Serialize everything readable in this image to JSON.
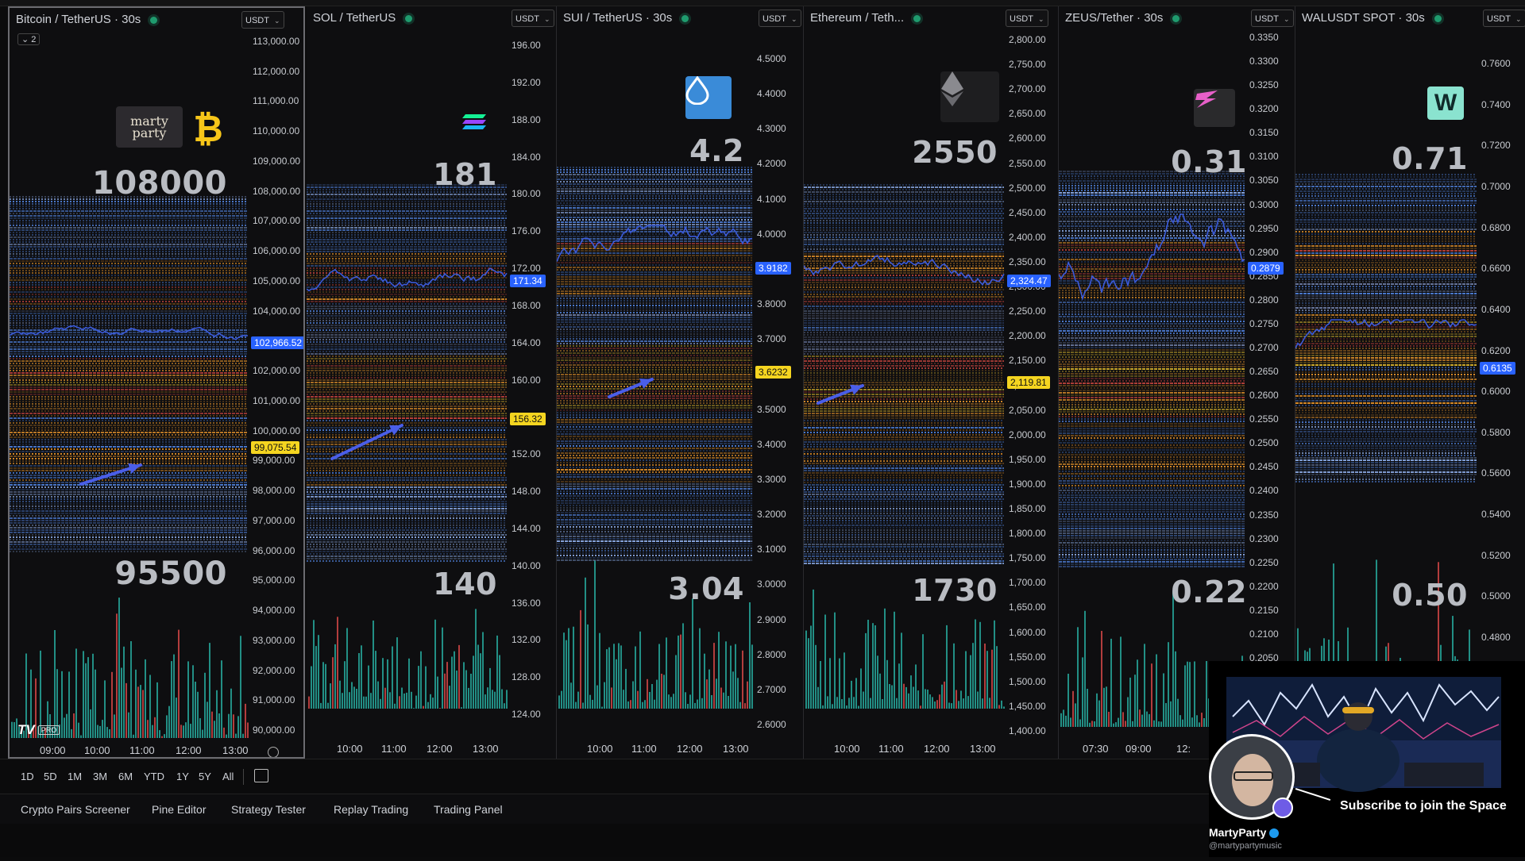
{
  "colors": {
    "line": "#3b5bdb",
    "vol_up": "#26a69a",
    "vol_down": "#d04545",
    "heat_blue": "#4e7fd8",
    "heat_orange": "#e0902a",
    "heat_red": "#d84a42",
    "heat_yellow": "#e9c02f",
    "tag_yellow": "#f5d520",
    "tag_blue": "#2962ff"
  },
  "panels": [
    {
      "id": "btc",
      "title": "Bitcoin / TetherUS · 30s",
      "currency": "USDT",
      "symbol_count": "2",
      "logo_text": "₿",
      "brand_text": "marty party",
      "top_label": "108000",
      "bottom_label": "95500",
      "axis": [
        "113,000.00",
        "112,000.00",
        "111,000.00",
        "110,000.00",
        "109,000.00",
        "108,000.00",
        "107,000.00",
        "106,000.00",
        "105,000.00",
        "104,000.00",
        "103,000.00",
        "102,000.00",
        "101,000.00",
        "100,000.00",
        "99,000.00",
        "98,000.00",
        "97,000.00",
        "96,000.00",
        "95,000.00",
        "94,000.00",
        "93,000.00",
        "92,000.00",
        "91,000.00",
        "90,000.00"
      ],
      "tags": [
        {
          "text": "102,966.52",
          "kind": "blue"
        },
        {
          "text": "99,075.54",
          "kind": "yellow"
        }
      ],
      "times": [
        "09:00",
        "10:00",
        "11:00",
        "12:00",
        "13:00"
      ]
    },
    {
      "id": "sol",
      "title": "SOL / TetherUS",
      "currency": "USDT",
      "top_label": "181",
      "bottom_label": "140",
      "axis": [
        "196.00",
        "192.00",
        "188.00",
        "184.00",
        "180.00",
        "176.00",
        "172.00",
        "168.00",
        "164.00",
        "160.00",
        "156.00",
        "152.00",
        "148.00",
        "144.00",
        "140.00",
        "136.00",
        "132.00",
        "128.00",
        "124.00"
      ],
      "tags": [
        {
          "text": "171.34",
          "kind": "blue"
        },
        {
          "text": "156.32",
          "kind": "yellow"
        }
      ],
      "times": [
        "10:00",
        "11:00",
        "12:00",
        "13:00"
      ]
    },
    {
      "id": "sui",
      "title": "SUI / TetherUS · 30s",
      "currency": "USDT",
      "top_label": "4.2",
      "bottom_label": "3.04",
      "axis": [
        "4.5000",
        "4.4000",
        "4.3000",
        "4.2000",
        "4.1000",
        "4.0000",
        "3.9000",
        "3.8000",
        "3.7000",
        "3.6000",
        "3.5000",
        "3.4000",
        "3.3000",
        "3.2000",
        "3.1000",
        "3.0000",
        "2.9000",
        "2.8000",
        "2.7000",
        "2.6000"
      ],
      "tags": [
        {
          "text": "3.9182",
          "kind": "blue"
        },
        {
          "text": "3.6232",
          "kind": "yellow"
        }
      ],
      "times": [
        "10:00",
        "11:00",
        "12:00",
        "13:00"
      ]
    },
    {
      "id": "eth",
      "title": "Ethereum / Teth...",
      "currency": "USDT",
      "top_label": "2550",
      "bottom_label": "1730",
      "axis": [
        "2,800.00",
        "2,750.00",
        "2,700.00",
        "2,650.00",
        "2,600.00",
        "2,550.00",
        "2,500.00",
        "2,450.00",
        "2,400.00",
        "2,350.00",
        "2,300.00",
        "2,250.00",
        "2,200.00",
        "2,150.00",
        "2,100.00",
        "2,050.00",
        "2,000.00",
        "1,950.00",
        "1,900.00",
        "1,850.00",
        "1,800.00",
        "1,750.00",
        "1,700.00",
        "1,650.00",
        "1,600.00",
        "1,550.00",
        "1,500.00",
        "1,450.00",
        "1,400.00"
      ],
      "tags": [
        {
          "text": "2,324.47",
          "kind": "blue"
        },
        {
          "text": "2,119.81",
          "kind": "yellow"
        }
      ],
      "times": [
        "10:00",
        "11:00",
        "12:00",
        "13:00"
      ]
    },
    {
      "id": "zeus",
      "title": "ZEUS/Tether · 30s",
      "currency": "USDT",
      "top_label": "0.31",
      "bottom_label": "0.22",
      "axis": [
        "0.3350",
        "0.3300",
        "0.3250",
        "0.3200",
        "0.3150",
        "0.3100",
        "0.3050",
        "0.3000",
        "0.2950",
        "0.2900",
        "0.2850",
        "0.2800",
        "0.2750",
        "0.2700",
        "0.2650",
        "0.2600",
        "0.2550",
        "0.2500",
        "0.2450",
        "0.2400",
        "0.2350",
        "0.2300",
        "0.2250",
        "0.2200",
        "0.2150",
        "0.2100",
        "0.2050"
      ],
      "tags": [
        {
          "text": "0.2879",
          "kind": "blue"
        }
      ],
      "times": [
        "07:30",
        "09:00",
        "12:"
      ]
    },
    {
      "id": "wal",
      "title": "WALUSDT SPOT · 30s",
      "currency": "USDT",
      "logo_text": "W",
      "top_label": "0.71",
      "bottom_label": "0.50",
      "axis": [
        "0.7600",
        "0.7400",
        "0.7200",
        "0.7000",
        "0.6800",
        "0.6600",
        "0.6400",
        "0.6200",
        "0.6000",
        "0.5800",
        "0.5600",
        "0.5400",
        "0.5200",
        "0.5000",
        "0.4800"
      ],
      "tags": [
        {
          "text": "0.6135",
          "kind": "blue"
        }
      ],
      "times": []
    }
  ],
  "ranges": [
    "1D",
    "5D",
    "1M",
    "3M",
    "6M",
    "YTD",
    "1Y",
    "5Y",
    "All"
  ],
  "tabs": [
    "Crypto Pairs Screener",
    "Pine Editor",
    "Strategy Tester",
    "Replay Trading",
    "Trading Panel"
  ],
  "tv_badge": "PRO",
  "overlay": {
    "name": "MartyParty",
    "handle": "@martypartymusic",
    "cta": "Subscribe to join the Space"
  }
}
